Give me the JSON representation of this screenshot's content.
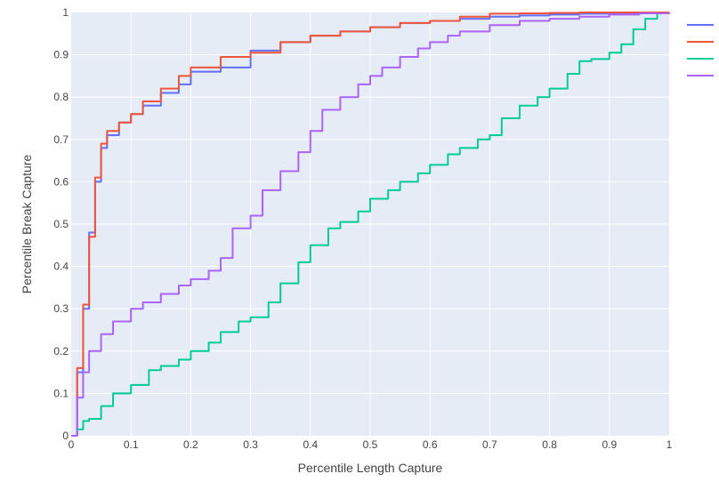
{
  "chart_data": {
    "type": "line",
    "xlabel": "Percentile Length Capture",
    "ylabel": "Percentile Break Capture",
    "xlim": [
      0,
      1
    ],
    "ylim": [
      0,
      1
    ],
    "grid": true,
    "legend_placement": "top-right",
    "x_ticks": [
      "0",
      "0.1",
      "0.2",
      "0.3",
      "0.4",
      "0.5",
      "0.6",
      "0.7",
      "0.8",
      "0.9",
      "1"
    ],
    "y_ticks": [
      "0",
      "0.1",
      "0.2",
      "0.3",
      "0.4",
      "0.5",
      "0.6",
      "0.7",
      "0.8",
      "0.9",
      "1"
    ],
    "background": "#e5ecf6",
    "grid_color": "#ffffff",
    "series": [
      {
        "color": "#636efa",
        "x": [
          0,
          0.01,
          0.02,
          0.03,
          0.04,
          0.05,
          0.06,
          0.08,
          0.1,
          0.12,
          0.15,
          0.18,
          0.2,
          0.25,
          0.3,
          0.35,
          0.4,
          0.45,
          0.5,
          0.55,
          0.6,
          0.65,
          0.7,
          0.75,
          0.8,
          0.85,
          0.9,
          0.95,
          1.0
        ],
        "y": [
          0,
          0.15,
          0.3,
          0.48,
          0.6,
          0.68,
          0.71,
          0.74,
          0.76,
          0.78,
          0.81,
          0.83,
          0.86,
          0.87,
          0.91,
          0.93,
          0.945,
          0.955,
          0.965,
          0.975,
          0.98,
          0.985,
          0.99,
          0.993,
          0.995,
          0.997,
          0.998,
          0.999,
          1.0
        ]
      },
      {
        "color": "#ef553b",
        "x": [
          0,
          0.01,
          0.02,
          0.03,
          0.04,
          0.05,
          0.06,
          0.08,
          0.1,
          0.12,
          0.15,
          0.18,
          0.2,
          0.25,
          0.3,
          0.35,
          0.4,
          0.45,
          0.5,
          0.55,
          0.6,
          0.65,
          0.7,
          0.75,
          0.8,
          0.85,
          0.9,
          0.95,
          1.0
        ],
        "y": [
          0,
          0.16,
          0.31,
          0.47,
          0.61,
          0.69,
          0.72,
          0.74,
          0.76,
          0.79,
          0.82,
          0.85,
          0.87,
          0.895,
          0.905,
          0.93,
          0.945,
          0.955,
          0.965,
          0.975,
          0.98,
          0.99,
          0.997,
          0.998,
          0.999,
          1.0,
          1.0,
          1.0,
          1.0
        ]
      },
      {
        "color": "#00cc96",
        "x": [
          0,
          0.01,
          0.02,
          0.03,
          0.05,
          0.07,
          0.1,
          0.13,
          0.15,
          0.18,
          0.2,
          0.23,
          0.25,
          0.28,
          0.3,
          0.33,
          0.35,
          0.38,
          0.4,
          0.43,
          0.45,
          0.48,
          0.5,
          0.53,
          0.55,
          0.58,
          0.6,
          0.63,
          0.65,
          0.68,
          0.7,
          0.72,
          0.75,
          0.78,
          0.8,
          0.83,
          0.85,
          0.87,
          0.9,
          0.92,
          0.94,
          0.96,
          0.98,
          1.0
        ],
        "y": [
          0,
          0.015,
          0.035,
          0.04,
          0.07,
          0.1,
          0.12,
          0.155,
          0.165,
          0.18,
          0.2,
          0.22,
          0.245,
          0.27,
          0.28,
          0.315,
          0.36,
          0.41,
          0.45,
          0.49,
          0.505,
          0.53,
          0.56,
          0.58,
          0.6,
          0.62,
          0.64,
          0.665,
          0.68,
          0.7,
          0.71,
          0.75,
          0.78,
          0.8,
          0.82,
          0.855,
          0.885,
          0.89,
          0.905,
          0.925,
          0.96,
          0.985,
          0.998,
          1.0
        ]
      },
      {
        "color": "#ab63fa",
        "x": [
          0,
          0.01,
          0.02,
          0.03,
          0.05,
          0.07,
          0.1,
          0.12,
          0.15,
          0.18,
          0.2,
          0.23,
          0.25,
          0.27,
          0.3,
          0.32,
          0.35,
          0.38,
          0.4,
          0.42,
          0.45,
          0.48,
          0.5,
          0.52,
          0.55,
          0.58,
          0.6,
          0.63,
          0.65,
          0.7,
          0.75,
          0.8,
          0.85,
          0.9,
          0.95,
          1.0
        ],
        "y": [
          0,
          0.09,
          0.15,
          0.2,
          0.24,
          0.27,
          0.3,
          0.315,
          0.335,
          0.355,
          0.37,
          0.39,
          0.42,
          0.49,
          0.52,
          0.58,
          0.625,
          0.67,
          0.72,
          0.77,
          0.8,
          0.83,
          0.85,
          0.87,
          0.895,
          0.915,
          0.93,
          0.945,
          0.955,
          0.97,
          0.98,
          0.985,
          0.99,
          0.995,
          0.998,
          1.0
        ]
      }
    ]
  }
}
